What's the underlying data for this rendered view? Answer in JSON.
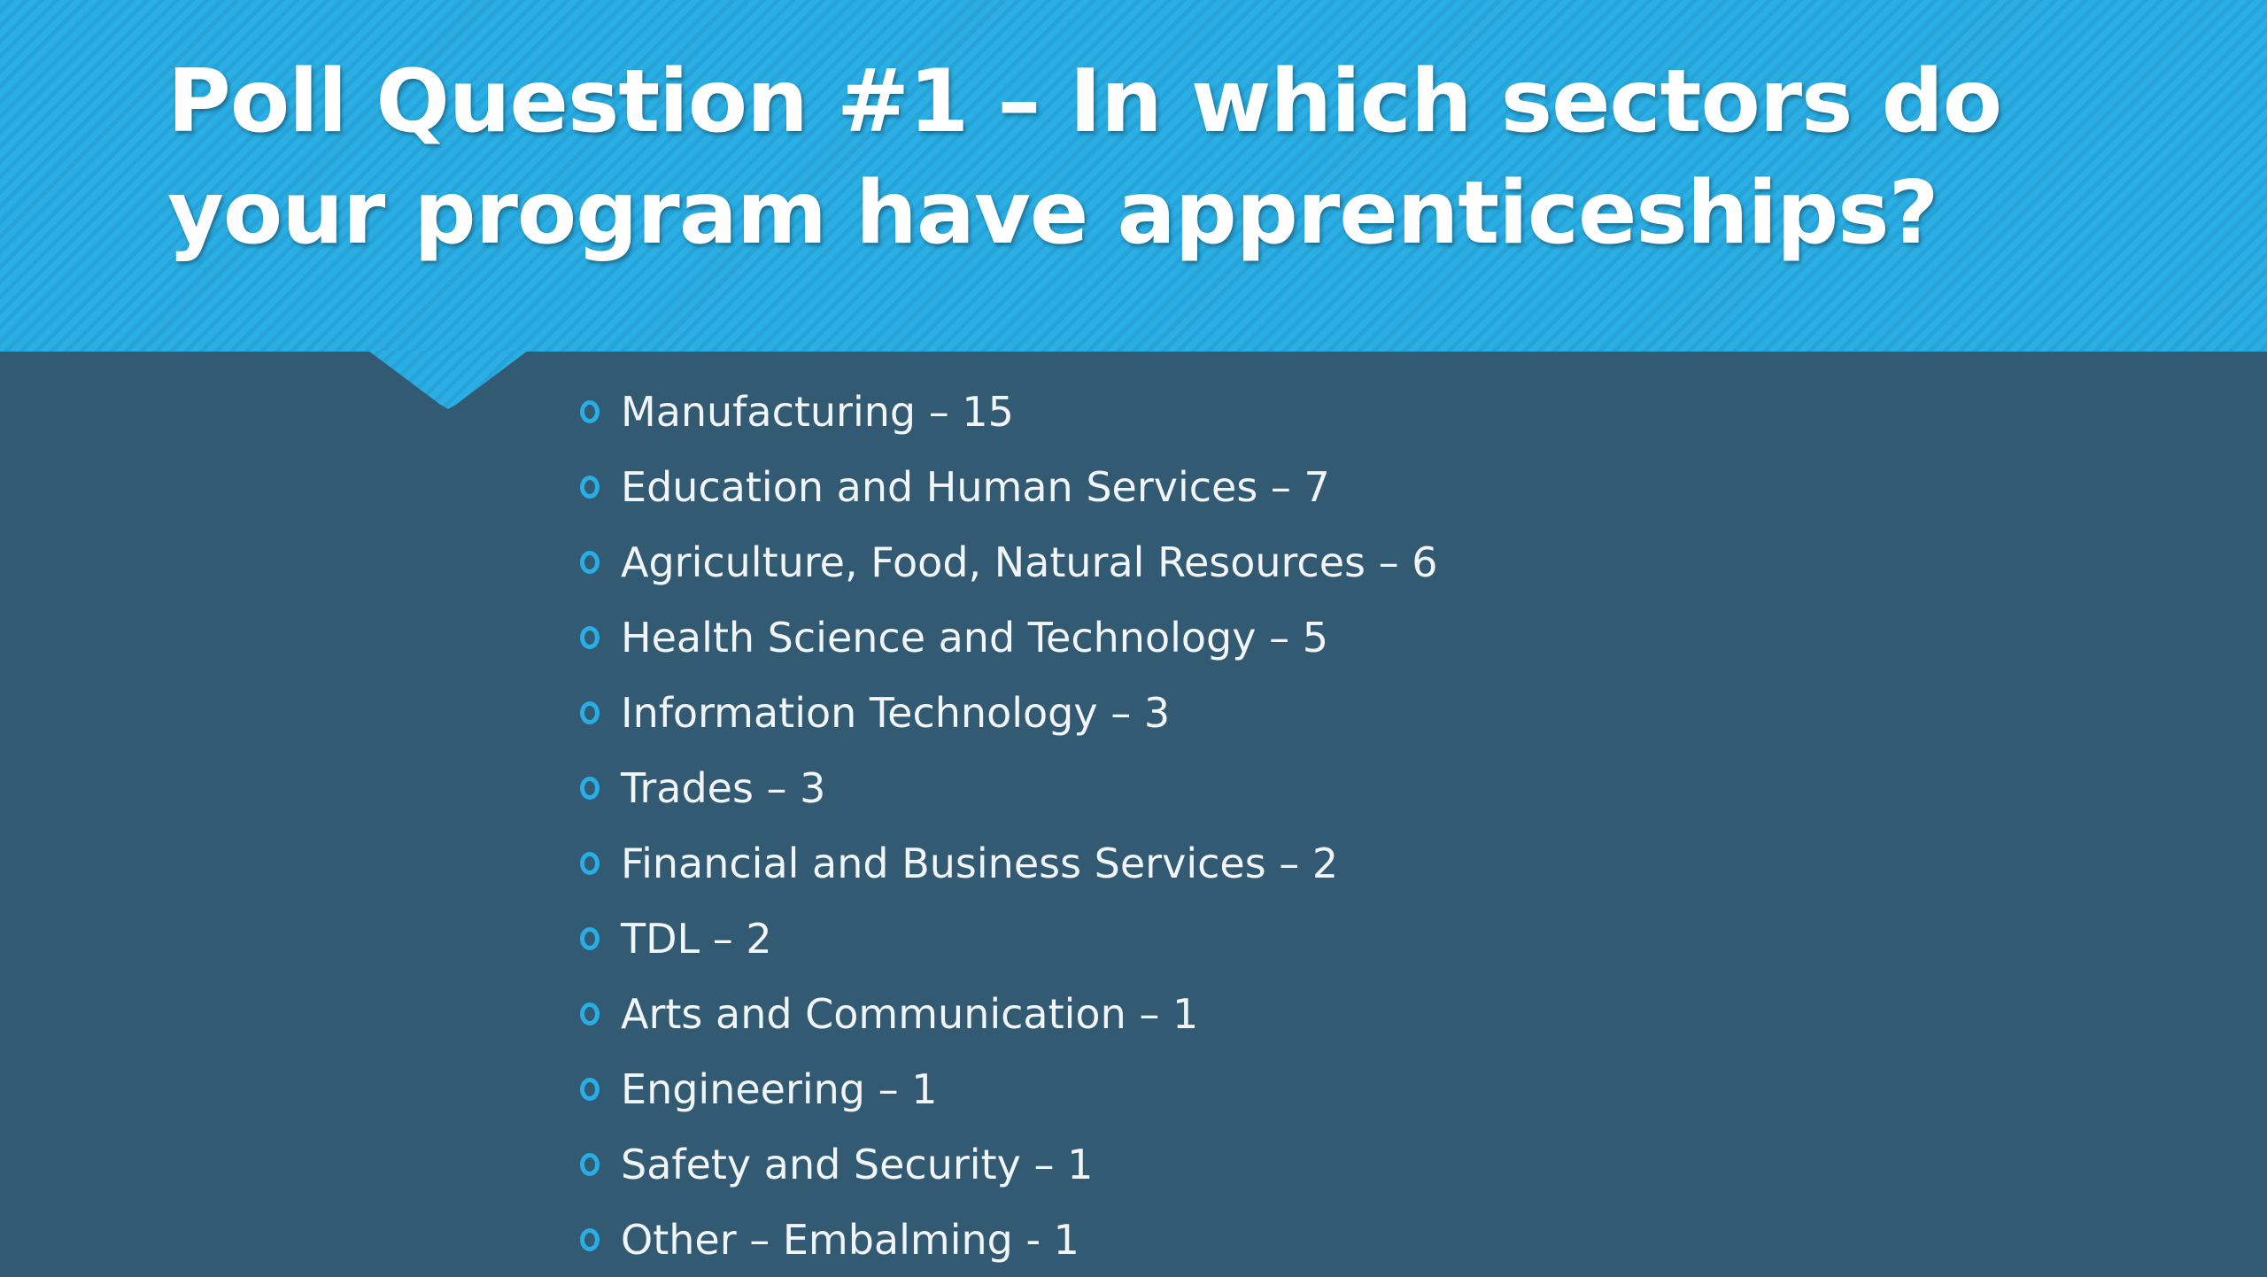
{
  "slide": {
    "title": "Poll Question #1 – In which sectors do your program have apprenticeships?",
    "colors": {
      "header": "#2aaee3",
      "background": "#325a72",
      "bullet": "#28aee4",
      "text": "#ffffff"
    },
    "bullet_icon": "hollow-circle",
    "items": [
      {
        "label": "Manufacturing – 15"
      },
      {
        "label": "Education and Human Services – 7"
      },
      {
        "label": "Agriculture, Food, Natural Resources – 6"
      },
      {
        "label": "Health Science and Technology – 5"
      },
      {
        "label": "Information Technology – 3"
      },
      {
        "label": "Trades – 3"
      },
      {
        "label": "Financial and Business Services – 2"
      },
      {
        "label": "TDL – 2"
      },
      {
        "label": "Arts and Communication – 1"
      },
      {
        "label": "Engineering – 1"
      },
      {
        "label": "Safety and Security – 1"
      },
      {
        "label": "Other – Embalming - 1"
      }
    ]
  }
}
